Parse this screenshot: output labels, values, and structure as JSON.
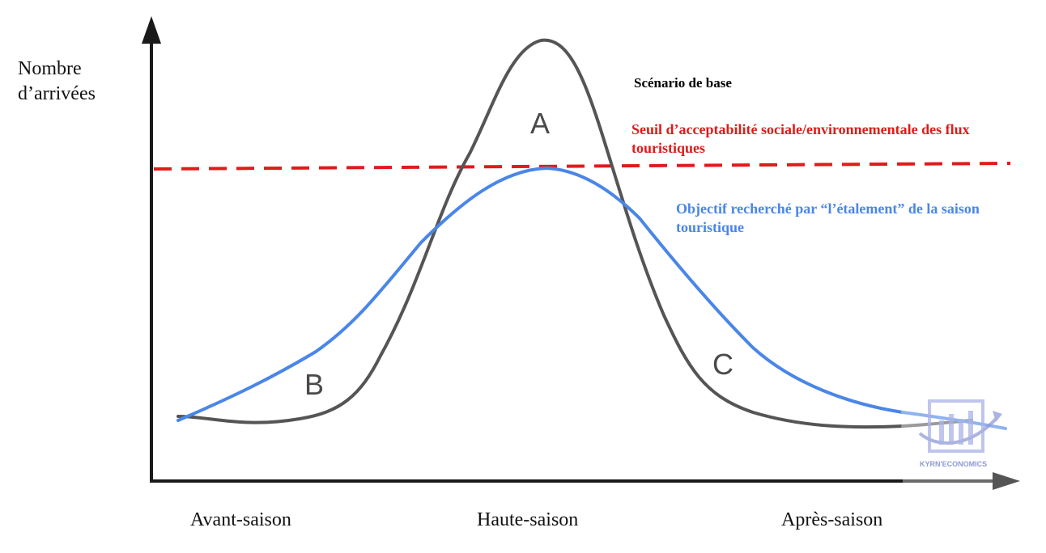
{
  "y_axis_label": "Nombre d’arrivées",
  "x_axis_labels": [
    "Avant-saison",
    "Haute-saison",
    "Après-saison"
  ],
  "legend": {
    "base": {
      "text": "Scénario de base",
      "color": "#000000"
    },
    "threshold": {
      "text": "Seuil d’acceptabilité sociale/environnementale des flux touristiques",
      "color": "#e01b1b"
    },
    "objective": {
      "text": "Objectif recherché par “l’étalement” de la saison touristique",
      "color": "#4a86e8"
    }
  },
  "area_labels": {
    "a": "A",
    "b": "B",
    "c": "C"
  },
  "logo": {
    "text": "KYRN'ECONOMICS",
    "color": "#8f9ad8"
  },
  "colors": {
    "axis": "#1a1a1a",
    "base_curve": "#555555",
    "threshold_line": "#e01b1b",
    "objective_curve": "#4a86e8",
    "area_text": "#4a4a4a"
  }
}
